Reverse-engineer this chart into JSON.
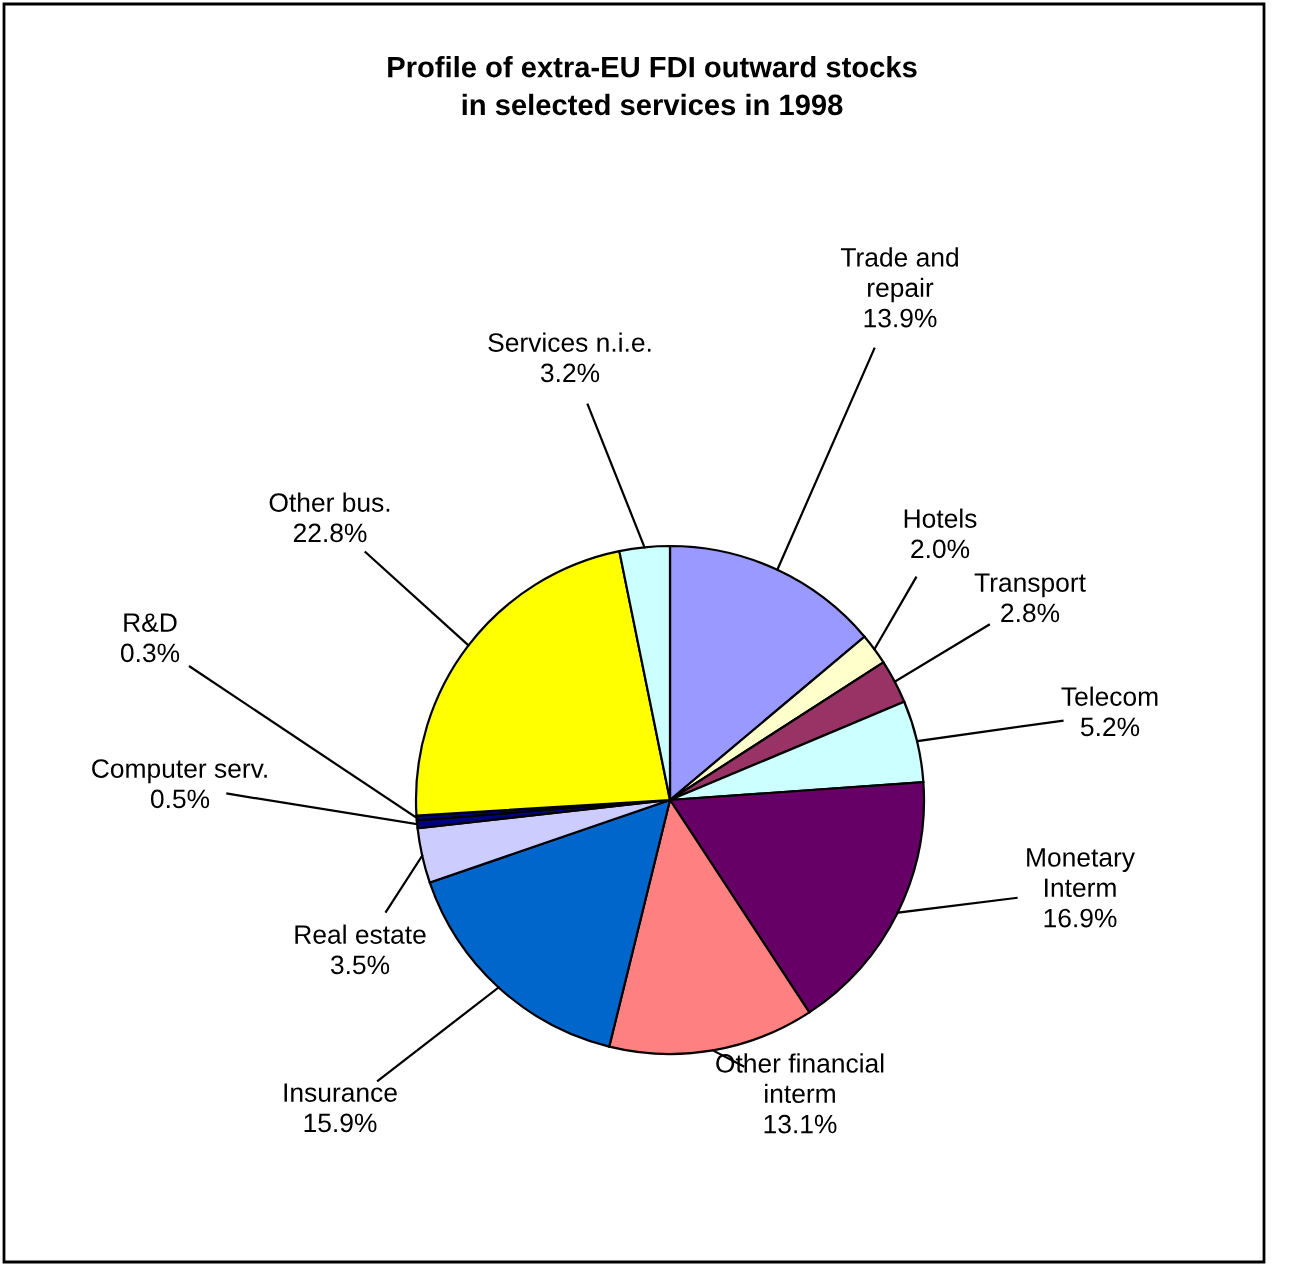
{
  "chart_data": {
    "type": "pie",
    "title": "Profile of extra-EU FDI outward stocks\nin selected services in 1998",
    "categories": [
      "Trade and\nrepair",
      "Hotels",
      "Transport",
      "Telecom",
      "Monetary\nInterm",
      "Other financial\ninterm",
      "Insurance",
      "Real estate",
      "Computer serv.",
      "R&D",
      "Other bus.",
      "Services n.i.e."
    ],
    "values": [
      13.9,
      2.0,
      2.8,
      5.2,
      16.9,
      13.1,
      15.9,
      3.5,
      0.5,
      0.3,
      22.8,
      3.2
    ],
    "value_labels": [
      "13.9%",
      "2.0%",
      "2.8%",
      "5.2%",
      "16.9%",
      "13.1%",
      "15.9%",
      "3.5%",
      "0.5%",
      "0.3%",
      "22.8%",
      "3.2%"
    ],
    "colors": [
      "#9999ff",
      "#ffffcc",
      "#993366",
      "#ccffff",
      "#660066",
      "#ff8080",
      "#0066cc",
      "#ccccff",
      "#000080",
      "#000080",
      "#ffff00",
      "#ccffff"
    ]
  }
}
